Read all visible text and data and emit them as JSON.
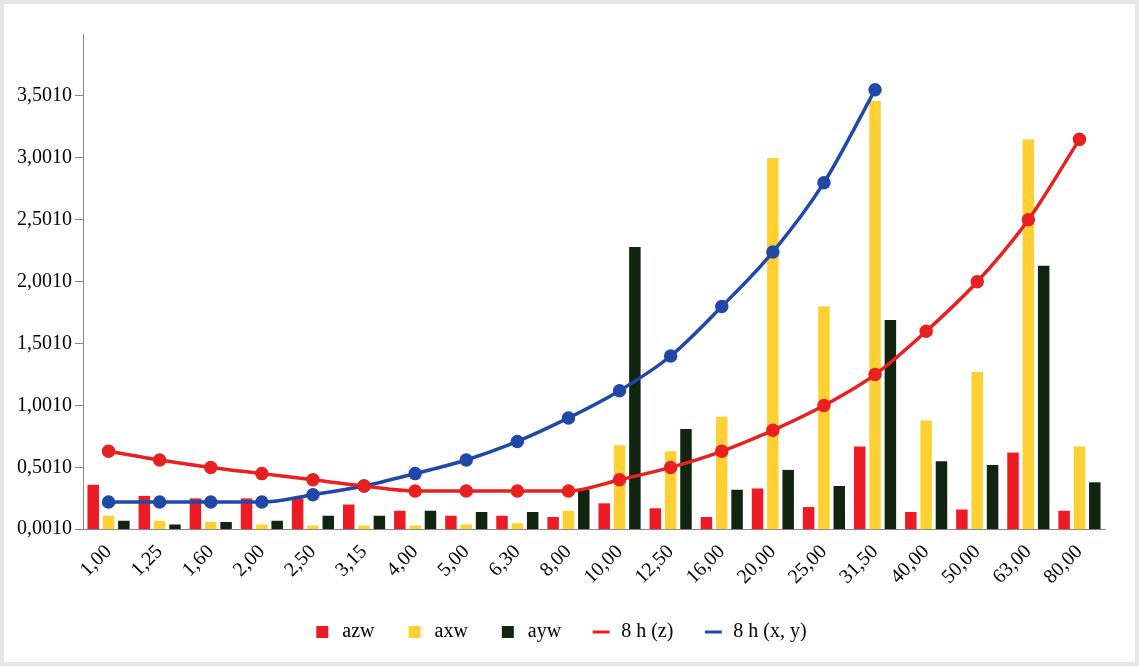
{
  "chart_data": {
    "type": "bar",
    "categories": [
      "1,00",
      "1,25",
      "1,60",
      "2,00",
      "2,50",
      "3,15",
      "4,00",
      "5,00",
      "6,30",
      "8,00",
      "10,00",
      "12,50",
      "16,00",
      "20,00",
      "25,00",
      "31,50",
      "40,00",
      "50,00",
      "63,00",
      "80,00"
    ],
    "series": [
      {
        "name": "azw",
        "color": "#ed1c24",
        "values": [
          0.36,
          0.27,
          0.25,
          0.25,
          0.25,
          0.2,
          0.15,
          0.11,
          0.11,
          0.1,
          0.21,
          0.17,
          0.1,
          0.33,
          0.18,
          0.67,
          0.14,
          0.16,
          0.62,
          0.15
        ]
      },
      {
        "name": "axw",
        "color": "#ffd033",
        "values": [
          0.11,
          0.07,
          0.06,
          0.04,
          0.03,
          0.03,
          0.03,
          0.04,
          0.05,
          0.15,
          0.68,
          0.63,
          0.91,
          3.0,
          1.8,
          3.46,
          0.88,
          1.27,
          3.15,
          0.67
        ]
      },
      {
        "name": "ayw",
        "color": "#10240f",
        "values": [
          0.07,
          0.04,
          0.06,
          0.07,
          0.11,
          0.11,
          0.15,
          0.14,
          0.14,
          0.32,
          2.28,
          0.81,
          0.32,
          0.48,
          0.35,
          1.69,
          0.55,
          0.52,
          2.13,
          0.38
        ]
      },
      {
        "name": "8 h (z)",
        "type": "line",
        "color": "#e82020",
        "values": [
          0.63,
          0.56,
          0.5,
          0.45,
          0.4,
          0.35,
          0.31,
          0.31,
          0.31,
          0.31,
          0.4,
          0.5,
          0.63,
          0.8,
          1.0,
          1.25,
          1.6,
          2.0,
          2.5,
          3.15
        ]
      },
      {
        "name": "8 h (x, y)",
        "type": "line",
        "color": "#2048a8",
        "values": [
          0.22,
          0.22,
          0.22,
          0.22,
          0.28,
          0.35,
          0.45,
          0.56,
          0.71,
          0.9,
          1.12,
          1.4,
          1.8,
          2.24,
          2.8,
          3.55,
          null,
          null,
          null,
          null
        ]
      }
    ],
    "ylim": [
      0.001,
      4.001
    ],
    "yticks": [
      {
        "value": 0.001,
        "label": "0,0010"
      },
      {
        "value": 0.501,
        "label": "0,5010"
      },
      {
        "value": 1.001,
        "label": "1,0010"
      },
      {
        "value": 1.501,
        "label": "1,5010"
      },
      {
        "value": 2.001,
        "label": "2,0010"
      },
      {
        "value": 2.501,
        "label": "2,5010"
      },
      {
        "value": 3.001,
        "label": "3,0010"
      },
      {
        "value": 3.501,
        "label": "3,5010"
      }
    ],
    "grid": false,
    "legend": "bottom",
    "marker": "circle"
  }
}
